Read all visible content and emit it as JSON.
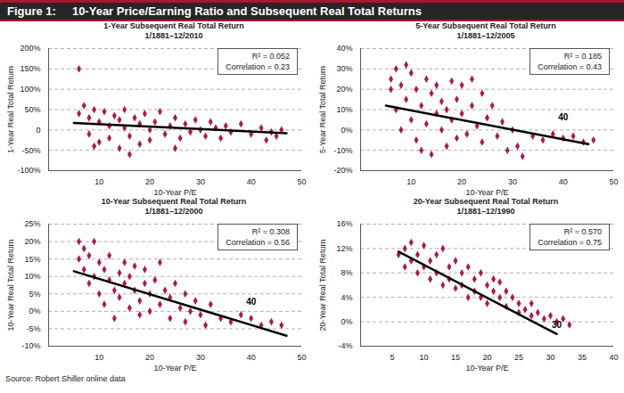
{
  "figure": {
    "label": "Figure 1:",
    "title": "10-Year Price/Earning Ratio and Subsequent Real Total Returns",
    "source": "Source: Robert Shiller online data"
  },
  "chart_data": [
    {
      "type": "scatter",
      "title": "1-Year Subsequent Real Total Return",
      "subtitle": "1/1881–12/2010",
      "x_label": "10-Year P/E",
      "y_label": "1-Year Real Total Return",
      "xlim": [
        0,
        50
      ],
      "xticks": [
        10,
        20,
        30,
        40,
        50
      ],
      "ylim": [
        -100,
        200
      ],
      "yticks": [
        {
          "value": -100,
          "label": "-100%"
        },
        {
          "value": -50,
          "label": "-50%"
        },
        0,
        {
          "value": 50,
          "label": "50%"
        },
        {
          "value": 100,
          "label": "100%"
        },
        {
          "value": 150,
          "label": "150%"
        },
        {
          "value": 200,
          "label": "200%"
        }
      ],
      "grid": true,
      "color": "#b0174a",
      "marker": "diamond",
      "x": [
        6,
        6,
        7,
        8,
        8,
        9,
        9,
        10,
        10,
        11,
        12,
        12,
        13,
        14,
        14,
        15,
        15,
        16,
        16,
        17,
        18,
        18,
        19,
        20,
        20,
        21,
        22,
        23,
        24,
        25,
        25,
        26,
        27,
        28,
        29,
        30,
        31,
        32,
        33,
        34,
        35,
        36,
        38,
        40,
        42,
        43,
        44,
        45,
        46
      ],
      "values": [
        150,
        40,
        60,
        30,
        -10,
        50,
        -40,
        20,
        -30,
        45,
        10,
        -20,
        35,
        -45,
        25,
        5,
        50,
        -15,
        -60,
        30,
        -35,
        15,
        40,
        0,
        -25,
        20,
        45,
        -10,
        10,
        30,
        -45,
        -20,
        15,
        -5,
        25,
        0,
        -15,
        20,
        5,
        -20,
        10,
        -5,
        15,
        -10,
        5,
        -25,
        -5,
        -15,
        0
      ],
      "trend_line": {
        "x": [
          5,
          47
        ],
        "values": [
          17,
          -8
        ],
        "color": "#000000"
      },
      "stat_labels": [
        "R² = 0.052",
        "Correlation = 0.23"
      ],
      "annotations": []
    },
    {
      "type": "scatter",
      "title": "5-Year Subsequent Real Total Return",
      "subtitle": "1/1881–12/2005",
      "x_label": "10-Year P/E",
      "y_label": "5-Year Real Total Return",
      "xlim": [
        0,
        50
      ],
      "xticks": [
        10,
        20,
        30,
        40,
        50
      ],
      "ylim": [
        -20,
        40
      ],
      "yticks": [
        {
          "value": -20,
          "label": "-20%"
        },
        {
          "value": -10,
          "label": "-10%"
        },
        {
          "value": 0,
          "label": "0%"
        },
        {
          "value": 10,
          "label": "10%"
        },
        {
          "value": 20,
          "label": "20%"
        },
        {
          "value": 30,
          "label": "30%"
        },
        {
          "value": 40,
          "label": "40%"
        }
      ],
      "grid": true,
      "color": "#b0174a",
      "marker": "diamond",
      "x": [
        6,
        6,
        7,
        7,
        8,
        8,
        9,
        9,
        10,
        10,
        11,
        11,
        12,
        12,
        13,
        13,
        14,
        14,
        15,
        15,
        16,
        16,
        17,
        17,
        18,
        18,
        19,
        19,
        20,
        20,
        21,
        22,
        22,
        23,
        24,
        24,
        25,
        26,
        27,
        28,
        29,
        30,
        31,
        32,
        34,
        36,
        38,
        40,
        42,
        44,
        46
      ],
      "values": [
        20,
        25,
        30,
        10,
        22,
        0,
        32,
        15,
        5,
        28,
        -5,
        20,
        12,
        -10,
        25,
        3,
        18,
        -12,
        8,
        22,
        0,
        14,
        -8,
        10,
        24,
        5,
        -4,
        15,
        22,
        8,
        -2,
        12,
        25,
        2,
        18,
        -6,
        6,
        12,
        -3,
        4,
        -10,
        0,
        -8,
        -13,
        -3,
        -5,
        -2,
        -4,
        -3,
        -6,
        -5
      ],
      "trend_line": {
        "x": [
          5,
          45
        ],
        "values": [
          12,
          -7
        ],
        "color": "#000000"
      },
      "stat_labels": [
        "R² = 0.185",
        "Correlation = 0.43"
      ],
      "annotations": [
        {
          "text": "40",
          "x": 40,
          "y": 3
        }
      ]
    },
    {
      "type": "scatter",
      "title": "10-Year Subsequent Real Total Return",
      "subtitle": "1/1881–12/2000",
      "x_label": "10-Year P/E",
      "y_label": "10-Year Real Total Return",
      "xlim": [
        0,
        50
      ],
      "xticks": [
        10,
        20,
        30,
        40,
        50
      ],
      "ylim": [
        -10,
        25
      ],
      "yticks": [
        {
          "value": -10,
          "label": "-10%"
        },
        {
          "value": -5,
          "label": "-5%"
        },
        {
          "value": 0,
          "label": "0%"
        },
        {
          "value": 5,
          "label": "5%"
        },
        {
          "value": 10,
          "label": "10%"
        },
        {
          "value": 15,
          "label": "15%"
        },
        {
          "value": 20,
          "label": "20%"
        },
        {
          "value": 25,
          "label": "25%"
        }
      ],
      "grid": true,
      "color": "#b0174a",
      "marker": "diamond",
      "x": [
        6,
        6,
        7,
        7,
        8,
        8,
        9,
        9,
        10,
        10,
        11,
        11,
        12,
        12,
        13,
        13,
        14,
        14,
        15,
        15,
        16,
        16,
        17,
        17,
        18,
        18,
        19,
        19,
        20,
        20,
        21,
        22,
        22,
        23,
        24,
        24,
        25,
        26,
        27,
        27,
        28,
        29,
        30,
        31,
        32,
        34,
        36,
        38,
        40,
        42,
        44,
        46
      ],
      "values": [
        15,
        20,
        12,
        18,
        16,
        8,
        20,
        10,
        14,
        5,
        12,
        2,
        9,
        16,
        6,
        -2,
        11,
        4,
        8,
        14,
        1,
        10,
        6,
        13,
        3,
        -1,
        8,
        12,
        5,
        0,
        9,
        2,
        14,
        6,
        -2,
        4,
        8,
        1,
        -3,
        5,
        0,
        3,
        -1,
        -4,
        2,
        -2,
        -3,
        -1,
        -2,
        -4,
        -3,
        -4
      ],
      "trend_line": {
        "x": [
          5,
          47
        ],
        "values": [
          11.5,
          -7
        ],
        "color": "#000000"
      },
      "stat_labels": [
        "R² = 0.308",
        "Correlation = 0.56"
      ],
      "annotations": [
        {
          "text": "40",
          "x": 40,
          "y": 1
        }
      ]
    },
    {
      "type": "scatter",
      "title": "20-Year Subsequent Real Total Return",
      "subtitle": "1/1881–12/1990",
      "x_label": "10-Year P/E",
      "y_label": "20-Year Real Total Return",
      "xlim": [
        0,
        40
      ],
      "xticks": [
        5,
        10,
        15,
        20,
        25,
        30,
        35,
        40
      ],
      "ylim": [
        -4,
        16
      ],
      "yticks": [
        {
          "value": -4,
          "label": "-4%"
        },
        {
          "value": 0,
          "label": "0%"
        },
        {
          "value": 4,
          "label": "4%"
        },
        {
          "value": 8,
          "label": "8%"
        },
        {
          "value": 12,
          "label": "12%"
        },
        {
          "value": 16,
          "label": "16%"
        }
      ],
      "grid": true,
      "color": "#b0174a",
      "marker": "diamond",
      "x": [
        6,
        7,
        7,
        8,
        8,
        9,
        9,
        10,
        10,
        11,
        11,
        12,
        12,
        13,
        13,
        14,
        14,
        15,
        15,
        16,
        16,
        17,
        17,
        18,
        18,
        19,
        19,
        20,
        20,
        21,
        21,
        22,
        22,
        23,
        23,
        24,
        25,
        25,
        26,
        27,
        27,
        28,
        29,
        30,
        31,
        32,
        33
      ],
      "values": [
        11,
        12,
        9,
        13,
        10,
        11,
        8,
        12.5,
        9,
        10,
        7,
        11,
        8,
        12,
        6,
        9,
        7,
        10,
        5.5,
        8,
        6,
        9,
        4,
        7,
        5,
        8,
        4,
        6,
        3,
        7,
        5,
        4,
        6.5,
        2.5,
        5,
        4,
        3,
        1.5,
        2,
        1,
        3,
        1.5,
        0.5,
        1,
        0,
        0.5,
        -0.5
      ],
      "trend_line": {
        "x": [
          6,
          31
        ],
        "values": [
          11.5,
          -2
        ],
        "color": "#000000"
      },
      "stat_labels": [
        "R² = 0.570",
        "Correlation = 0.75"
      ],
      "annotations": [
        {
          "text": "30",
          "x": 31,
          "y": -1.5
        }
      ]
    }
  ]
}
